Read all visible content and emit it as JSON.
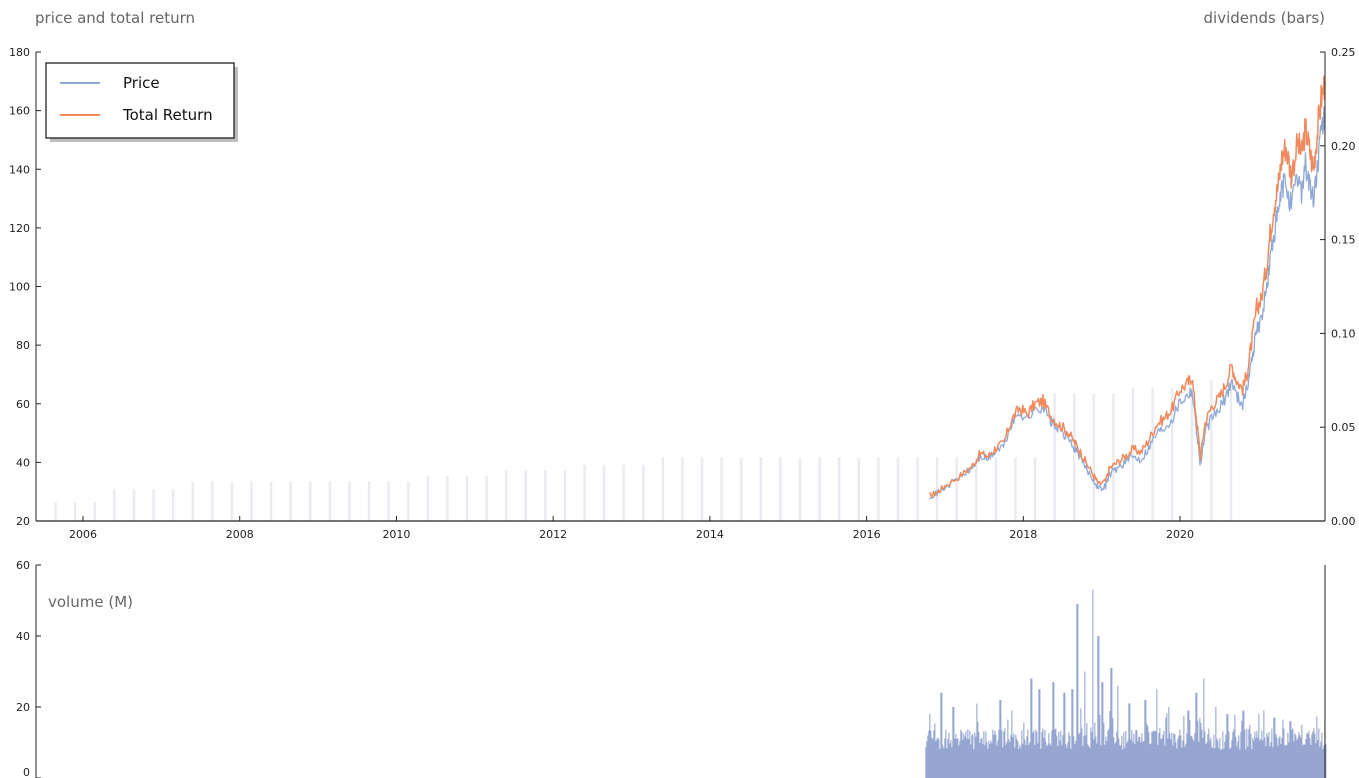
{
  "labels": {
    "price_axis": "price and total return",
    "dividend_axis": "dividends (bars)",
    "volume_axis": "volume (M)"
  },
  "colors": {
    "price": "#8fa9d6",
    "total_return": "#f08a5d",
    "dividends": "#d5dae3",
    "volume": "#7f93c7",
    "axis": "#222222"
  },
  "chart_data": [
    {
      "type": "line",
      "legend": {
        "entries": [
          "Price",
          "Total Return"
        ],
        "position": "top-left"
      },
      "x_ticks": [
        "2006",
        "2008",
        "2010",
        "2012",
        "2014",
        "2016",
        "2018",
        "2020"
      ],
      "xlim": [
        2005.4,
        2021.85
      ],
      "ylim": [
        20,
        180
      ],
      "y_ticks": [
        20,
        40,
        60,
        80,
        100,
        120,
        140,
        160,
        180
      ],
      "grid": false,
      "series": [
        {
          "name": "Price",
          "points": [
            [
              2016.8,
              28.5
            ],
            [
              2016.9,
              29.5
            ],
            [
              2017.0,
              31.5
            ],
            [
              2017.2,
              35
            ],
            [
              2017.35,
              38
            ],
            [
              2017.45,
              42
            ],
            [
              2017.55,
              41
            ],
            [
              2017.65,
              44
            ],
            [
              2017.75,
              45.5
            ],
            [
              2017.85,
              53
            ],
            [
              2017.95,
              57
            ],
            [
              2018.05,
              55
            ],
            [
              2018.15,
              58
            ],
            [
              2018.25,
              59
            ],
            [
              2018.35,
              54
            ],
            [
              2018.45,
              51
            ],
            [
              2018.55,
              49
            ],
            [
              2018.65,
              45
            ],
            [
              2018.72,
              42
            ],
            [
              2018.8,
              38
            ],
            [
              2018.9,
              34
            ],
            [
              2018.96,
              31
            ],
            [
              2019.05,
              32
            ],
            [
              2019.1,
              36
            ],
            [
              2019.2,
              38
            ],
            [
              2019.3,
              40
            ],
            [
              2019.4,
              42
            ],
            [
              2019.5,
              41
            ],
            [
              2019.6,
              45
            ],
            [
              2019.7,
              50
            ],
            [
              2019.8,
              52
            ],
            [
              2019.9,
              55
            ],
            [
              2020.0,
              61
            ],
            [
              2020.1,
              63
            ],
            [
              2020.15,
              65
            ],
            [
              2020.22,
              49
            ],
            [
              2020.26,
              39
            ],
            [
              2020.32,
              50
            ],
            [
              2020.4,
              55
            ],
            [
              2020.5,
              58
            ],
            [
              2020.58,
              62
            ],
            [
              2020.66,
              68
            ],
            [
              2020.72,
              63
            ],
            [
              2020.8,
              60
            ],
            [
              2020.86,
              66
            ],
            [
              2020.92,
              76
            ],
            [
              2020.98,
              86
            ],
            [
              2021.03,
              88
            ],
            [
              2021.1,
              98
            ],
            [
              2021.15,
              109
            ],
            [
              2021.2,
              118
            ],
            [
              2021.25,
              124
            ],
            [
              2021.3,
              133
            ],
            [
              2021.35,
              136
            ],
            [
              2021.42,
              127
            ],
            [
              2021.5,
              137
            ],
            [
              2021.55,
              133
            ],
            [
              2021.6,
              142
            ],
            [
              2021.65,
              135
            ],
            [
              2021.7,
              129
            ],
            [
              2021.75,
              140
            ],
            [
              2021.8,
              152
            ],
            [
              2021.85,
              158
            ]
          ]
        },
        {
          "name": "Total Return",
          "points": [
            [
              2016.8,
              28.5
            ],
            [
              2016.9,
              29.8
            ],
            [
              2017.0,
              32
            ],
            [
              2017.2,
              35.5
            ],
            [
              2017.35,
              38.8
            ],
            [
              2017.45,
              43
            ],
            [
              2017.55,
              42
            ],
            [
              2017.65,
              45
            ],
            [
              2017.75,
              46.5
            ],
            [
              2017.85,
              54.5
            ],
            [
              2017.95,
              58.5
            ],
            [
              2018.05,
              56.5
            ],
            [
              2018.15,
              60
            ],
            [
              2018.25,
              61
            ],
            [
              2018.35,
              56
            ],
            [
              2018.45,
              53
            ],
            [
              2018.55,
              51
            ],
            [
              2018.65,
              47
            ],
            [
              2018.72,
              44
            ],
            [
              2018.8,
              40
            ],
            [
              2018.9,
              35.5
            ],
            [
              2018.96,
              32.5
            ],
            [
              2019.05,
              33.5
            ],
            [
              2019.1,
              38
            ],
            [
              2019.2,
              40
            ],
            [
              2019.3,
              42
            ],
            [
              2019.4,
              44.5
            ],
            [
              2019.5,
              43.5
            ],
            [
              2019.6,
              47.5
            ],
            [
              2019.7,
              53
            ],
            [
              2019.8,
              55
            ],
            [
              2019.9,
              58.5
            ],
            [
              2020.0,
              65
            ],
            [
              2020.1,
              67
            ],
            [
              2020.15,
              69.5
            ],
            [
              2020.22,
              52.5
            ],
            [
              2020.26,
              42
            ],
            [
              2020.32,
              53.5
            ],
            [
              2020.4,
              59
            ],
            [
              2020.5,
              62
            ],
            [
              2020.58,
              66.5
            ],
            [
              2020.66,
              73
            ],
            [
              2020.72,
              68
            ],
            [
              2020.8,
              65
            ],
            [
              2020.86,
              71
            ],
            [
              2020.92,
              82
            ],
            [
              2020.98,
              93
            ],
            [
              2021.03,
              95
            ],
            [
              2021.1,
              106
            ],
            [
              2021.15,
              118
            ],
            [
              2021.2,
              128
            ],
            [
              2021.25,
              134
            ],
            [
              2021.3,
              144
            ],
            [
              2021.35,
              148
            ],
            [
              2021.42,
              138
            ],
            [
              2021.5,
              149
            ],
            [
              2021.55,
              145
            ],
            [
              2021.6,
              154
            ],
            [
              2021.65,
              147
            ],
            [
              2021.7,
              140
            ],
            [
              2021.75,
              152
            ],
            [
              2021.8,
              164
            ],
            [
              2021.85,
              170
            ]
          ]
        }
      ]
    },
    {
      "type": "bar",
      "axis": "right",
      "ylim": [
        0,
        0.25
      ],
      "y_ticks": [
        "0.00",
        "0.05",
        "0.10",
        "0.15",
        "0.20",
        "0.25"
      ],
      "series": [
        {
          "points": [
            [
              2005.65,
              0.01
            ],
            [
              2005.9,
              0.01
            ],
            [
              2006.15,
              0.01
            ],
            [
              2006.4,
              0.017
            ],
            [
              2006.65,
              0.017
            ],
            [
              2006.9,
              0.017
            ],
            [
              2007.15,
              0.017
            ],
            [
              2007.4,
              0.021
            ],
            [
              2007.65,
              0.021
            ],
            [
              2007.9,
              0.021
            ],
            [
              2008.15,
              0.021
            ],
            [
              2008.4,
              0.021
            ],
            [
              2008.65,
              0.021
            ],
            [
              2008.9,
              0.021
            ],
            [
              2009.15,
              0.021
            ],
            [
              2009.4,
              0.021
            ],
            [
              2009.65,
              0.021
            ],
            [
              2009.9,
              0.021
            ],
            [
              2010.15,
              0.021
            ],
            [
              2010.4,
              0.024
            ],
            [
              2010.65,
              0.024
            ],
            [
              2010.9,
              0.024
            ],
            [
              2011.15,
              0.024
            ],
            [
              2011.4,
              0.027
            ],
            [
              2011.65,
              0.027
            ],
            [
              2011.9,
              0.027
            ],
            [
              2012.15,
              0.027
            ],
            [
              2012.4,
              0.03
            ],
            [
              2012.65,
              0.03
            ],
            [
              2012.9,
              0.03
            ],
            [
              2013.15,
              0.03
            ],
            [
              2013.4,
              0.034
            ],
            [
              2013.65,
              0.034
            ],
            [
              2013.9,
              0.034
            ],
            [
              2014.15,
              0.034
            ],
            [
              2014.4,
              0.034
            ],
            [
              2014.65,
              0.034
            ],
            [
              2014.9,
              0.034
            ],
            [
              2015.15,
              0.034
            ],
            [
              2015.4,
              0.034
            ],
            [
              2015.65,
              0.034
            ],
            [
              2015.9,
              0.034
            ],
            [
              2016.15,
              0.034
            ],
            [
              2016.4,
              0.034
            ],
            [
              2016.65,
              0.034
            ],
            [
              2016.9,
              0.034
            ],
            [
              2017.15,
              0.034
            ],
            [
              2017.4,
              0.034
            ],
            [
              2017.65,
              0.034
            ],
            [
              2017.9,
              0.034
            ],
            [
              2018.15,
              0.034
            ],
            [
              2018.4,
              0.068
            ],
            [
              2018.65,
              0.068
            ],
            [
              2018.9,
              0.068
            ],
            [
              2019.15,
              0.068
            ],
            [
              2019.4,
              0.071
            ],
            [
              2019.65,
              0.071
            ],
            [
              2019.9,
              0.071
            ],
            [
              2020.15,
              0.071
            ],
            [
              2020.4,
              0.075
            ],
            [
              2020.65,
              0.075
            ]
          ]
        }
      ]
    },
    {
      "type": "bar",
      "title": "volume (M)",
      "ylim": [
        0,
        60
      ],
      "y_ticks": [
        0,
        20,
        40,
        60
      ],
      "x_start": 2016.75,
      "x_end": 2021.85,
      "baseline_low": 8,
      "baseline_high": 14,
      "spikes": [
        [
          2016.8,
          18
        ],
        [
          2016.95,
          24
        ],
        [
          2017.1,
          20
        ],
        [
          2017.4,
          21
        ],
        [
          2017.7,
          22
        ],
        [
          2017.85,
          19
        ],
        [
          2018.1,
          28
        ],
        [
          2018.2,
          25
        ],
        [
          2018.38,
          27
        ],
        [
          2018.52,
          24
        ],
        [
          2018.62,
          25
        ],
        [
          2018.68,
          49
        ],
        [
          2018.78,
          30
        ],
        [
          2018.88,
          53
        ],
        [
          2018.95,
          40
        ],
        [
          2019.0,
          27
        ],
        [
          2019.12,
          31
        ],
        [
          2019.2,
          26
        ],
        [
          2019.35,
          21
        ],
        [
          2019.55,
          22
        ],
        [
          2019.7,
          25
        ],
        [
          2019.85,
          20
        ],
        [
          2020.1,
          19
        ],
        [
          2020.2,
          24
        ],
        [
          2020.3,
          28
        ],
        [
          2020.45,
          20
        ],
        [
          2020.6,
          18
        ],
        [
          2020.8,
          19
        ],
        [
          2021.0,
          18
        ],
        [
          2021.2,
          17
        ],
        [
          2021.4,
          16
        ],
        [
          2021.55,
          15
        ],
        [
          2021.7,
          14
        ],
        [
          2021.84,
          16
        ]
      ]
    }
  ]
}
